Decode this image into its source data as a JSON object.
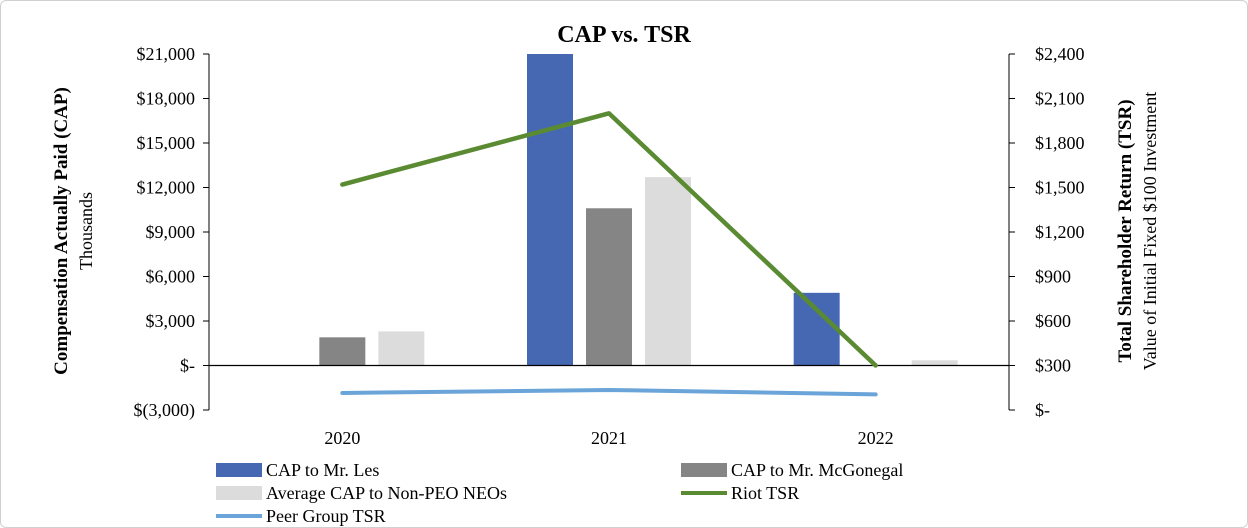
{
  "chart_data": {
    "type": "bar",
    "title": "CAP vs. TSR",
    "categories": [
      "2020",
      "2021",
      "2022"
    ],
    "y_left": {
      "label": "Compensation Actually Paid (CAP)",
      "sublabel": "Thousands",
      "range": [
        -3000,
        21000
      ],
      "ticks": [
        {
          "value": 21000,
          "label": "$21,000"
        },
        {
          "value": 18000,
          "label": "$18,000"
        },
        {
          "value": 15000,
          "label": "$15,000"
        },
        {
          "value": 12000,
          "label": "$12,000"
        },
        {
          "value": 9000,
          "label": "$9,000"
        },
        {
          "value": 6000,
          "label": "$6,000"
        },
        {
          "value": 3000,
          "label": "$3,000"
        },
        {
          "value": 0,
          "label": "$-"
        },
        {
          "value": -3000,
          "label": "$(3,000)"
        }
      ]
    },
    "y_right": {
      "label": "Total Shareholder Return (TSR)",
      "sublabel": "Value of Initial Fixed $100 Investment",
      "range": [
        0,
        2400
      ],
      "ticks": [
        {
          "value": 2400,
          "label": "$2,400"
        },
        {
          "value": 2100,
          "label": "$2,100"
        },
        {
          "value": 1800,
          "label": "$1,800"
        },
        {
          "value": 1500,
          "label": "$1,500"
        },
        {
          "value": 1200,
          "label": "$1,200"
        },
        {
          "value": 900,
          "label": "$900"
        },
        {
          "value": 600,
          "label": "$600"
        },
        {
          "value": 300,
          "label": "$300"
        },
        {
          "value": 0,
          "label": "$-"
        }
      ]
    },
    "bar_series": [
      {
        "name": "CAP to Mr. Les",
        "color": "#4668b3",
        "values": [
          0,
          21000,
          4900
        ]
      },
      {
        "name": "CAP to Mr. McGonegal",
        "color": "#858585",
        "values": [
          1900,
          10600,
          0
        ]
      },
      {
        "name": "Average CAP to Non-PEO NEOs",
        "color": "#dcdcdc",
        "values": [
          2300,
          12700,
          350
        ]
      }
    ],
    "line_series": [
      {
        "name": "Riot TSR",
        "color": "#5a8a32",
        "values": [
          1520,
          2000,
          300
        ]
      },
      {
        "name": "Peer Group TSR",
        "color": "#6aa4d9",
        "values": [
          115,
          135,
          105
        ]
      }
    ],
    "legend": [
      {
        "name": "CAP to Mr. Les",
        "kind": "bar",
        "color": "#4668b3"
      },
      {
        "name": "CAP to Mr. McGonegal",
        "kind": "bar",
        "color": "#858585"
      },
      {
        "name": "Average CAP to Non-PEO NEOs",
        "kind": "bar",
        "color": "#dcdcdc"
      },
      {
        "name": "Riot TSR",
        "kind": "line",
        "color": "#5a8a32"
      },
      {
        "name": "Peer Group TSR",
        "kind": "line",
        "color": "#6aa4d9"
      }
    ],
    "legend_position": "bottom",
    "grid": false
  }
}
